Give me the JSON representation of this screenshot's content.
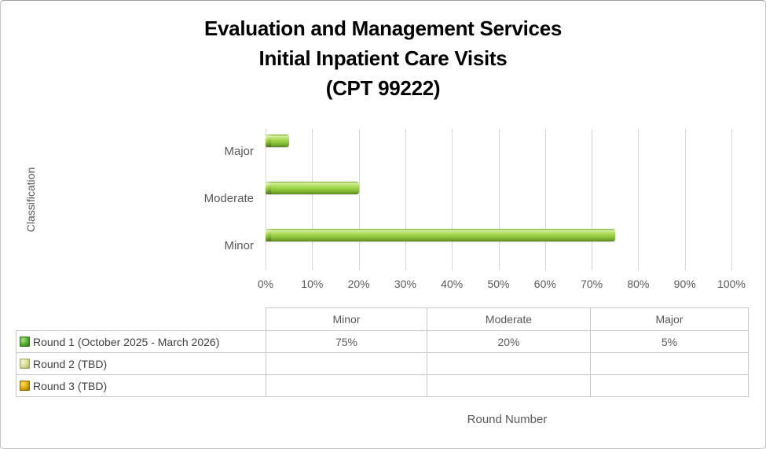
{
  "chart": {
    "title_lines": [
      "Evaluation and Management Services",
      "Initial Inpatient Care Visits",
      "(CPT 99222)"
    ],
    "y_axis_title": "Classification",
    "table_axis_title": "Round Number"
  },
  "chart_data": {
    "type": "bar",
    "orientation": "horizontal",
    "title": "Evaluation and Management Services Initial Inpatient Care Visits (CPT 99222)",
    "xlabel": "Round Number",
    "ylabel": "Classification",
    "xlim": [
      0,
      100
    ],
    "x_tick_labels": [
      "0%",
      "10%",
      "20%",
      "30%",
      "40%",
      "50%",
      "60%",
      "70%",
      "80%",
      "90%",
      "100%"
    ],
    "grid": true,
    "categories": [
      "Minor",
      "Moderate",
      "Major"
    ],
    "category_display_top_to_bottom": [
      "Major",
      "Moderate",
      "Minor"
    ],
    "legend_position": "left column of data table",
    "series": [
      {
        "name": "Round 1 (October 2025 - March 2026)",
        "values": [
          75,
          20,
          5
        ],
        "value_labels": [
          "75%",
          "20%",
          "5%"
        ],
        "color": "#8FC63E",
        "key_colors": {
          "light": "#aee188",
          "mid": "#4fae2a",
          "dark": "#2e7c10"
        }
      },
      {
        "name": "Round 2 (TBD)",
        "values": [
          null,
          null,
          null
        ],
        "value_labels": [
          "",
          "",
          ""
        ],
        "color": "#D8DA90",
        "key_colors": {
          "light": "#f6f6d8",
          "mid": "#d6d98b",
          "dark": "#a3a65c"
        }
      },
      {
        "name": "Round 3 (TBD)",
        "values": [
          null,
          null,
          null
        ],
        "value_labels": [
          "",
          "",
          ""
        ],
        "color": "#DFA800",
        "key_colors": {
          "light": "#ffdd66",
          "mid": "#dda700",
          "dark": "#8f6d00"
        }
      }
    ]
  },
  "colors": {
    "text_gray": "#595959",
    "gridline": "#d9d9d9",
    "table_border": "#c8c8c8",
    "bar_fill": "#8FC63E",
    "title_text": "#000000",
    "background": "#ffffff"
  }
}
